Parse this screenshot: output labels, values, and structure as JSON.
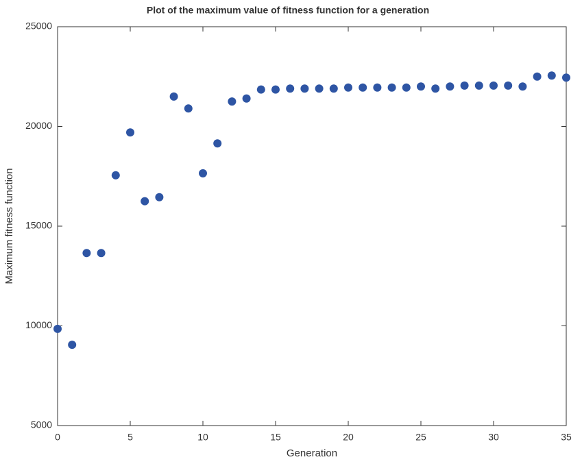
{
  "chart_data": {
    "type": "scatter",
    "title": "Plot of the maximum value of fitness function for a generation",
    "x_label": "Generation",
    "y_label": "Maximum fitness function",
    "series": [
      {
        "color": "#2e55a4",
        "x": [
          0,
          1,
          2,
          3,
          4,
          5,
          6,
          7,
          8,
          9,
          10,
          11,
          12,
          13,
          14,
          15,
          16,
          17,
          18,
          19,
          20,
          21,
          22,
          23,
          24,
          25,
          26,
          27,
          28,
          29,
          30,
          31,
          32,
          33,
          34,
          35
        ],
        "values": [
          9850,
          9050,
          13650,
          13650,
          17550,
          19700,
          16250,
          16450,
          21500,
          20900,
          17650,
          19150,
          21250,
          21400,
          21850,
          21850,
          21900,
          21900,
          21900,
          21900,
          21950,
          21950,
          21950,
          21950,
          21950,
          22000,
          21900,
          22000,
          22050,
          22050,
          22050,
          22050,
          22000,
          22500,
          22550,
          22450
        ]
      }
    ],
    "xlim": [
      0,
      35
    ],
    "xticks": [
      0,
      5,
      10,
      15,
      20,
      25,
      30,
      35
    ],
    "ylim": [
      5000,
      25000
    ],
    "yticks": [
      5000,
      10000,
      15000,
      20000,
      25000
    ],
    "grid": false
  }
}
